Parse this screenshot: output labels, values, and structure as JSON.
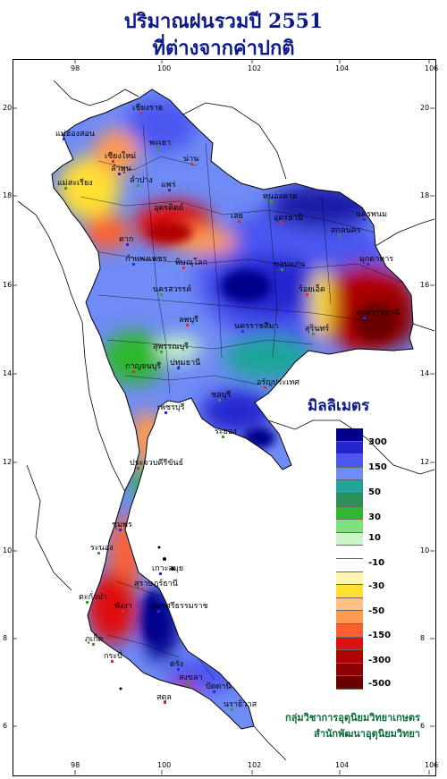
{
  "title": {
    "line1": "ปริมาณฝนรวมปี  2551",
    "line2": "ที่ต่างจากค่าปกติ"
  },
  "axes": {
    "lon_ticks": [
      "98",
      "100",
      "102",
      "104",
      "106"
    ],
    "lat_ticks": [
      "20",
      "18",
      "16",
      "14",
      "12",
      "10",
      "8",
      "6"
    ]
  },
  "legend": {
    "title": "มิลลิเมตร",
    "colors": [
      "#00008b",
      "#2525d0",
      "#4b57f0",
      "#6f8bf5",
      "#1fa59a",
      "#2f8f5a",
      "#2fb82f",
      "#7fe07f",
      "#c9f5c9",
      "#ffffff",
      "#ffffff",
      "#fff5b0",
      "#ffe033",
      "#ffc080",
      "#ff9a50",
      "#ff6030",
      "#e01010",
      "#b00000",
      "#8b0000",
      "#6b0000"
    ],
    "labels": [
      "300",
      "150",
      "50",
      "30",
      "10",
      "-10",
      "-30",
      "-50",
      "-150",
      "-300",
      "-500"
    ]
  },
  "credit": {
    "line1": "กลุ่มวิชาการอุตุนิยมวิทยาเกษตร",
    "line2": "สำนักพัฒนาอุตุนิยมวิทยา"
  },
  "provinces": [
    {
      "name": "เชียงราย",
      "id": "chiang-rai"
    },
    {
      "name": "แม่ฮ่องสอน",
      "id": "mae-hong-son"
    },
    {
      "name": "พะเยา",
      "id": "phayao"
    },
    {
      "name": "เชียงใหม่",
      "id": "chiang-mai"
    },
    {
      "name": "ลำพูน",
      "id": "lamphun"
    },
    {
      "name": "ลำปาง",
      "id": "lampang"
    },
    {
      "name": "น่าน",
      "id": "nan"
    },
    {
      "name": "แพร่",
      "id": "phrae"
    },
    {
      "name": "แม่สะเรียง",
      "id": "mae-sariang"
    },
    {
      "name": "อุตรดิตถ์",
      "id": "uttaradit"
    },
    {
      "name": "ตาก",
      "id": "tak"
    },
    {
      "name": "หนองคาย",
      "id": "nong-khai"
    },
    {
      "name": "อุดรธานี",
      "id": "udon-thani"
    },
    {
      "name": "นครพนม",
      "id": "nakhon-phanom"
    },
    {
      "name": "สกลนคร",
      "id": "sakon-nakhon"
    },
    {
      "name": "เลย",
      "id": "loei"
    },
    {
      "name": "มุกดาหาร",
      "id": "mukdahan"
    },
    {
      "name": "ขอนแก่น",
      "id": "khon-kaen"
    },
    {
      "name": "พิษณุโลก",
      "id": "phitsanulok"
    },
    {
      "name": "กำแพงเพชร",
      "id": "kamphaeng-phet"
    },
    {
      "name": "นครสวรรค์",
      "id": "nakhon-sawan"
    },
    {
      "name": "ร้อยเอ็ด",
      "id": "roi-et"
    },
    {
      "name": "อุบลราชธานี",
      "id": "ubon"
    },
    {
      "name": "สุรินทร์",
      "id": "surin"
    },
    {
      "name": "ลพบุรี",
      "id": "lopburi"
    },
    {
      "name": "นครราชสีมา",
      "id": "nakhon-ratchasima"
    },
    {
      "name": "สุพรรณบุรี",
      "id": "suphan-buri"
    },
    {
      "name": "กาญจนบุรี",
      "id": "kanchanaburi"
    },
    {
      "name": "ปทุมธานี",
      "id": "pathum-thani"
    },
    {
      "name": "ชลบุรี",
      "id": "chon-buri"
    },
    {
      "name": "อรัญประเทศ",
      "id": "aranyaprathet"
    },
    {
      "name": "เพชรบุรี",
      "id": "phetchaburi"
    },
    {
      "name": "ระยอง",
      "id": "rayong"
    },
    {
      "name": "ประจวบคีรีขันธ์",
      "id": "prachuap"
    },
    {
      "name": "ชุมพร",
      "id": "chumphon"
    },
    {
      "name": "ระนอง",
      "id": "ranong"
    },
    {
      "name": "สุราษฎร์ธานี",
      "id": "surat-thani"
    },
    {
      "name": "เกาะสมุย",
      "id": "koh-samui"
    },
    {
      "name": "ตะกั่วป่า",
      "id": "takua-pa"
    },
    {
      "name": "พังงา",
      "id": "phang-nga"
    },
    {
      "name": "นครศรีธรรมราช",
      "id": "nakhon-si-thammarat"
    },
    {
      "name": "ภูเก็ต",
      "id": "phuket"
    },
    {
      "name": "กระบี่",
      "id": "krabi"
    },
    {
      "name": "ตรัง",
      "id": "trang"
    },
    {
      "name": "สงขลา",
      "id": "songkhla"
    },
    {
      "name": "สตูล",
      "id": "satun"
    },
    {
      "name": "ปัตตานี",
      "id": "pattani"
    },
    {
      "name": "นราธิวาส",
      "id": "narathiwat"
    }
  ]
}
